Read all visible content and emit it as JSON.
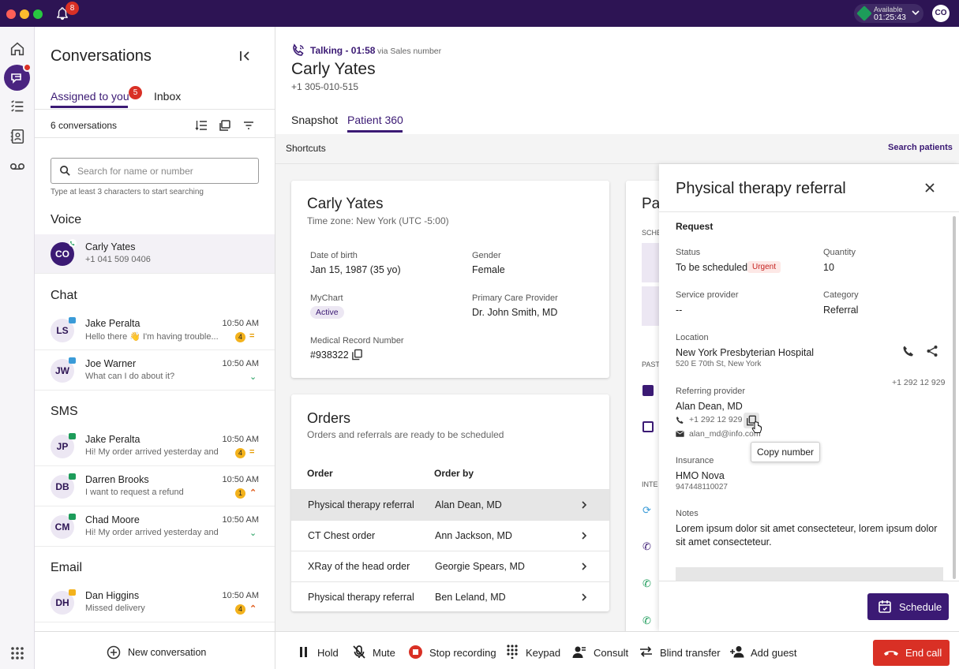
{
  "topbar": {
    "notifications_count": "8",
    "status_label": "Available",
    "status_timer": "01:25:43",
    "user_initials": "CO"
  },
  "conversations": {
    "title": "Conversations",
    "tabs": [
      {
        "label": "Assigned to you",
        "badge": "5"
      },
      {
        "label": "Inbox"
      }
    ],
    "count_label": "6 conversations",
    "search_placeholder": "Search for name or number",
    "search_hint": "Type at least 3 characters to start searching",
    "sections": {
      "voice": "Voice",
      "chat": "Chat",
      "sms": "SMS",
      "email": "Email"
    },
    "voice": [
      {
        "initials": "CO",
        "name": "Carly Yates",
        "preview": "+1 041 509 0406"
      }
    ],
    "chat": [
      {
        "initials": "LS",
        "name": "Jake Peralta",
        "preview": "Hello there 👋 I'm having trouble...",
        "time": "10:50 AM",
        "count": "4",
        "priority": "="
      },
      {
        "initials": "JW",
        "name": "Joe Warner",
        "preview": "What can I do about it?",
        "time": "10:50 AM",
        "priority": "⌄"
      }
    ],
    "sms": [
      {
        "initials": "JP",
        "name": "Jake Peralta",
        "preview": "Hi! My order arrived yesterday and ...",
        "time": "10:50 AM",
        "count": "4",
        "priority": "="
      },
      {
        "initials": "DB",
        "name": "Darren Brooks",
        "preview": "I want to request a refund",
        "time": "10:50 AM",
        "count": "1",
        "priority": "⌃"
      },
      {
        "initials": "CM",
        "name": "Chad Moore",
        "preview": "Hi! My order arrived yesterday and ...",
        "time": "10:50 AM",
        "priority": "⌄"
      }
    ],
    "email": [
      {
        "initials": "DH",
        "name": "Dan Higgins",
        "preview": "Missed delivery",
        "time": "10:50 AM",
        "count": "4",
        "priority": "⌃"
      }
    ],
    "new_conversation": "New conversation"
  },
  "call": {
    "status": "Talking - 01:58",
    "via": "via Sales number",
    "name": "Carly Yates",
    "phone": "+1 305-010-515",
    "tabs": [
      "Snapshot",
      "Patient 360"
    ]
  },
  "shortcuts": {
    "label": "Shortcuts",
    "search_patients": "Search patients"
  },
  "patient_card": {
    "name": "Carly Yates",
    "timezone": "Time zone: New York (UTC -5:00)",
    "dob_label": "Date of birth",
    "dob": "Jan 15, 1987 (35 yo)",
    "gender_label": "Gender",
    "gender": "Female",
    "mychart_label": "MyChart",
    "mychart": "Active",
    "pcp_label": "Primary Care  Provider",
    "pcp": "Dr. John Smith, MD",
    "mrn_label": "Medical Record Number",
    "mrn": "#938322"
  },
  "orders": {
    "title": "Orders",
    "subtitle": "Orders and referrals are ready to be scheduled",
    "col_order": "Order",
    "col_by": "Order by",
    "rows": [
      {
        "order": "Physical therapy referral",
        "by": "Alan Dean, MD"
      },
      {
        "order": "CT Chest order",
        "by": "Ann Jackson, MD"
      },
      {
        "order": "XRay of the head order",
        "by": "Georgie Spears, MD"
      },
      {
        "order": "Physical therapy referral",
        "by": "Ben Leland, MD"
      }
    ]
  },
  "partial_card": {
    "title": "Pa",
    "schedule_label": "SCHE",
    "past_label": "PAST",
    "inte_label": "INTE"
  },
  "drawer": {
    "title": "Physical therapy referral",
    "request": "Request",
    "status_label": "Status",
    "status": "To be scheduled",
    "urgent": "Urgent",
    "quantity_label": "Quantity",
    "quantity": "10",
    "service_label": "Service provider",
    "service": "--",
    "category_label": "Category",
    "category": "Referral",
    "location_label": "Location",
    "location": "New York Presbyterian Hospital",
    "address": "520 E 70th St, New York",
    "location_phone": "+1 292 12 929",
    "referring_label": "Referring provider",
    "referring": "Alan Dean, MD",
    "ref_phone": "+1 292 12 929",
    "ref_email": "alan_md@info.com",
    "tooltip": "Copy number",
    "insurance_label": "Insurance",
    "insurance": "HMO Nova",
    "insurance_id": "947448110027",
    "notes_label": "Notes",
    "notes": "Lorem ipsum dolor sit amet consecteteur, lorem ipsum dolor sit amet consecteteur.",
    "schedule": "Schedule"
  },
  "controls": {
    "hold": "Hold",
    "mute": "Mute",
    "stop_recording": "Stop recording",
    "keypad": "Keypad",
    "consult": "Consult",
    "blind_transfer": "Blind transfer",
    "add_guest": "Add guest",
    "end_call": "End call"
  }
}
